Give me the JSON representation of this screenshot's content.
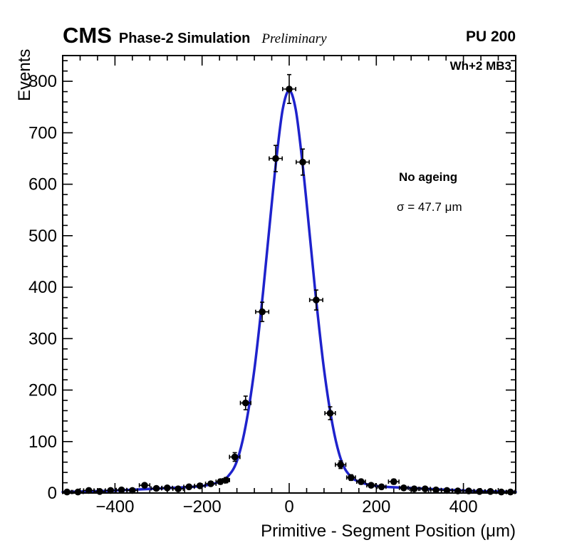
{
  "header": {
    "experiment": "CMS",
    "label": "Phase-2 Simulation",
    "sublabel": "Preliminary",
    "right_label": "PU 200"
  },
  "plot": {
    "corner_label": "Wh+2 MB3",
    "annotation_line1": "No ageing",
    "annotation_line2": "σ = 47.7 μm"
  },
  "chart_data": {
    "type": "scatter",
    "title": "",
    "xlabel": "Primitive - Segment Position (μm)",
    "ylabel": "Events",
    "xlim": [
      -520,
      520
    ],
    "ylim": [
      0,
      850
    ],
    "x_major_ticks": [
      -400,
      -200,
      0,
      200,
      400
    ],
    "x_minor_step": 40,
    "y_major_ticks": [
      0,
      100,
      200,
      300,
      400,
      500,
      600,
      700,
      800
    ],
    "y_minor_step": 20,
    "grid": false,
    "legend": false,
    "marker_color": "#000000",
    "points_format": "[x, y, x_halfwidth]; y_error = sqrt(y)",
    "points": [
      [
        -510,
        2,
        10
      ],
      [
        -485,
        2,
        12
      ],
      [
        -460,
        5,
        12
      ],
      [
        -435,
        3,
        12
      ],
      [
        -410,
        5,
        12
      ],
      [
        -385,
        6,
        12
      ],
      [
        -360,
        5,
        12
      ],
      [
        -332,
        15,
        12
      ],
      [
        -305,
        9,
        12
      ],
      [
        -280,
        10,
        12
      ],
      [
        -255,
        8,
        12
      ],
      [
        -230,
        12,
        12
      ],
      [
        -205,
        14,
        12
      ],
      [
        -180,
        18,
        12
      ],
      [
        -158,
        22,
        10
      ],
      [
        -145,
        25,
        8
      ],
      [
        -125,
        70,
        12
      ],
      [
        -100,
        175,
        12
      ],
      [
        -62,
        352,
        15
      ],
      [
        -31,
        650,
        15
      ],
      [
        0,
        785,
        15
      ],
      [
        31,
        643,
        15
      ],
      [
        62,
        375,
        15
      ],
      [
        94,
        155,
        12
      ],
      [
        118,
        55,
        12
      ],
      [
        142,
        30,
        10
      ],
      [
        165,
        22,
        10
      ],
      [
        188,
        15,
        10
      ],
      [
        212,
        12,
        10
      ],
      [
        240,
        22,
        12
      ],
      [
        263,
        10,
        10
      ],
      [
        287,
        8,
        10
      ],
      [
        312,
        8,
        12
      ],
      [
        337,
        6,
        12
      ],
      [
        362,
        5,
        12
      ],
      [
        387,
        4,
        12
      ],
      [
        412,
        4,
        12
      ],
      [
        437,
        3,
        12
      ],
      [
        462,
        3,
        12
      ],
      [
        487,
        2,
        12
      ],
      [
        508,
        2,
        10
      ]
    ],
    "fit": {
      "model": "gaussian",
      "mean": 0,
      "sigma": 47.7,
      "sigma_label": "47.7 μm",
      "color": "#1e22cc",
      "curve": [
        [
          -520,
          2
        ],
        [
          -470,
          3
        ],
        [
          -420,
          4
        ],
        [
          -370,
          6
        ],
        [
          -320,
          8
        ],
        [
          -270,
          10
        ],
        [
          -220,
          12
        ],
        [
          -190,
          15
        ],
        [
          -160,
          22
        ],
        [
          -140,
          33
        ],
        [
          -120,
          62
        ],
        [
          -100,
          130
        ],
        [
          -80,
          240
        ],
        [
          -60,
          390
        ],
        [
          -45,
          520
        ],
        [
          -30,
          645
        ],
        [
          -15,
          745
        ],
        [
          0,
          782
        ],
        [
          15,
          745
        ],
        [
          30,
          645
        ],
        [
          45,
          520
        ],
        [
          60,
          390
        ],
        [
          80,
          240
        ],
        [
          100,
          130
        ],
        [
          120,
          62
        ],
        [
          140,
          33
        ],
        [
          160,
          22
        ],
        [
          190,
          15
        ],
        [
          220,
          12
        ],
        [
          270,
          10
        ],
        [
          320,
          8
        ],
        [
          370,
          6
        ],
        [
          420,
          4
        ],
        [
          470,
          3
        ],
        [
          520,
          2
        ]
      ]
    }
  }
}
